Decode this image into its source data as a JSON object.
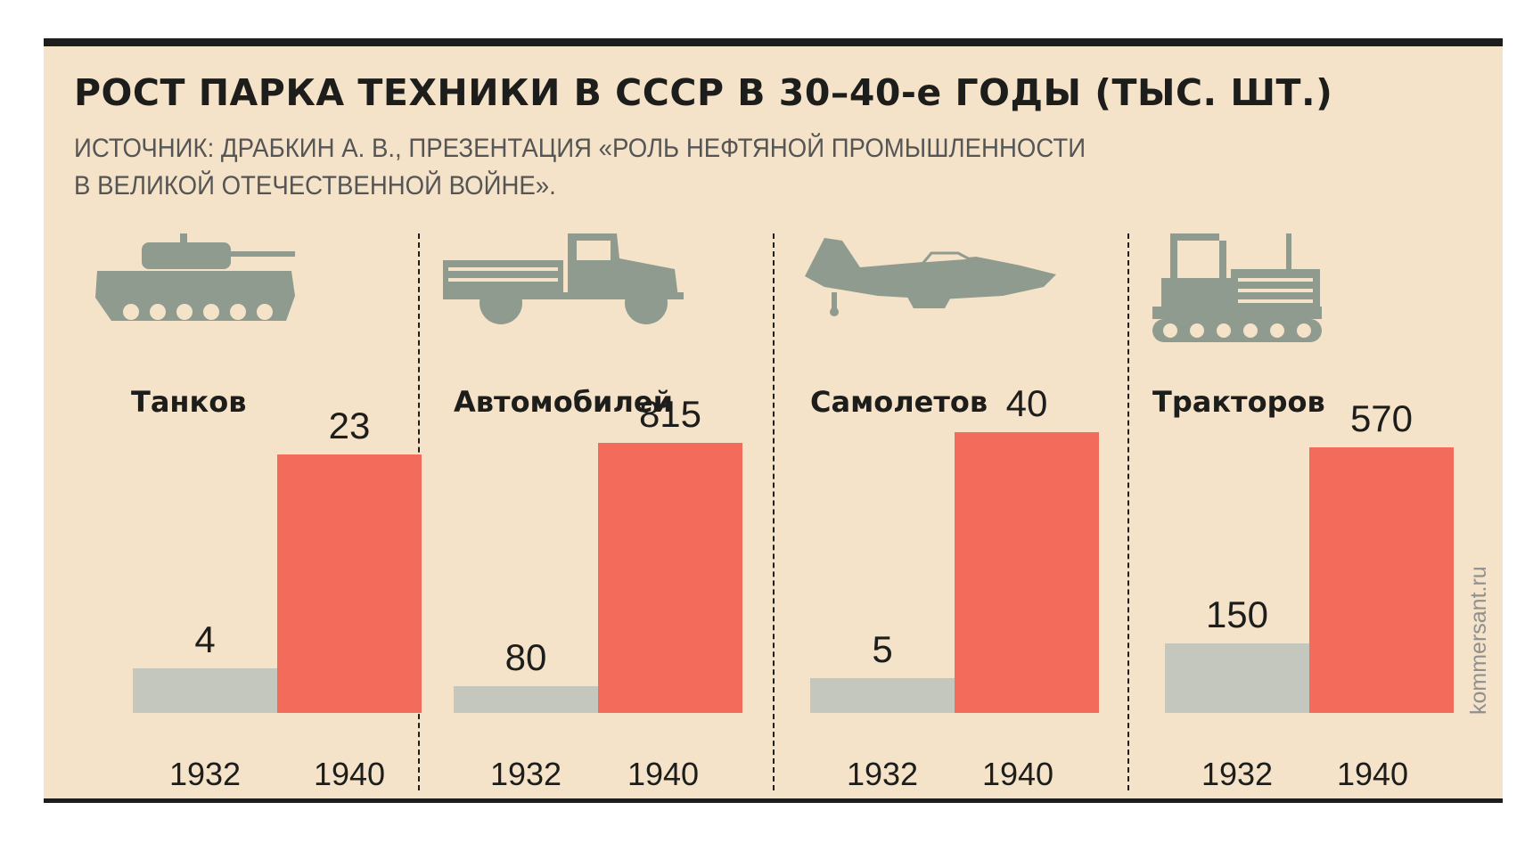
{
  "title": "РОСТ ПАРКА ТЕХНИКИ В СССР В 30–40-е ГОДЫ (ТЫС. ШТ.)",
  "source_line1": "ИСТОЧНИК: ДРАБКИН А. В., ПРЕЗЕНТАЦИЯ «РОЛЬ НЕФТЯНОЙ ПРОМЫШЛЕННОСТИ",
  "source_line2": "В ВЕЛИКОЙ ОТЕЧЕСТВЕННОЙ ВОЙНЕ».",
  "credit": "kommersant.ru",
  "colors": {
    "background": "#f5e3c9",
    "bar_1932": "#c3c7bd",
    "bar_1940": "#f26b5b",
    "icon": "#8f9b8f",
    "text": "#1d1d1b"
  },
  "chart_data": [
    {
      "type": "bar",
      "title": "Танков",
      "icon": "tank-icon",
      "categories": [
        "1932",
        "1940"
      ],
      "values": [
        4,
        23
      ]
    },
    {
      "type": "bar",
      "title": "Автомобилей",
      "icon": "truck-icon",
      "categories": [
        "1932",
        "1940"
      ],
      "values": [
        80,
        815
      ]
    },
    {
      "type": "bar",
      "title": "Самолетов",
      "icon": "airplane-icon",
      "categories": [
        "1932",
        "1940"
      ],
      "values": [
        5,
        40
      ]
    },
    {
      "type": "bar",
      "title": "Тракторов",
      "icon": "tractor-icon",
      "categories": [
        "1932",
        "1940"
      ],
      "values": [
        150,
        570
      ]
    }
  ]
}
